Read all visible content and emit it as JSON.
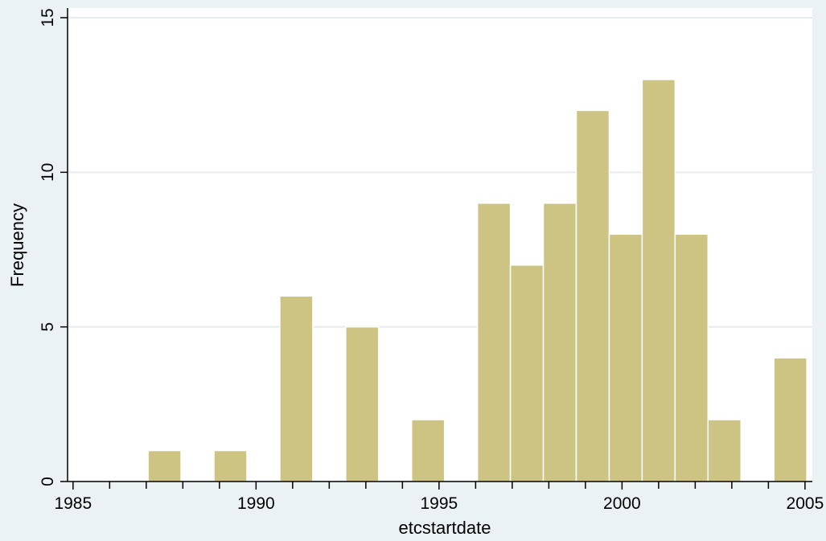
{
  "chart_data": {
    "type": "bar",
    "title": "",
    "xlabel": "etcstartdate",
    "ylabel": "Frequency",
    "xlim": [
      1984.85,
      2005.2
    ],
    "ylim": [
      0,
      15
    ],
    "x_ticks": [
      "1985",
      "1990",
      "1995",
      "2000",
      "2005"
    ],
    "y_ticks": [
      "0",
      "5",
      "10",
      "15"
    ],
    "grid": true,
    "colors": {
      "background": "#eaf2f3",
      "plot_background": "#ffffff",
      "bar_fill": "#cdc383",
      "bar_edge": "#ffffff",
      "grid": "#e3edee"
    },
    "bins": [
      {
        "start": 1987.05,
        "end": 1987.95,
        "value": 1
      },
      {
        "start": 1988.85,
        "end": 1989.75,
        "value": 1
      },
      {
        "start": 1990.65,
        "end": 1991.55,
        "value": 6
      },
      {
        "start": 1992.45,
        "end": 1993.35,
        "value": 5
      },
      {
        "start": 1994.25,
        "end": 1995.15,
        "value": 2
      },
      {
        "start": 1996.05,
        "end": 1996.95,
        "value": 9
      },
      {
        "start": 1996.95,
        "end": 1997.85,
        "value": 7
      },
      {
        "start": 1997.85,
        "end": 1998.75,
        "value": 9
      },
      {
        "start": 1998.75,
        "end": 1999.65,
        "value": 12
      },
      {
        "start": 1999.65,
        "end": 2000.55,
        "value": 8
      },
      {
        "start": 2000.55,
        "end": 2001.45,
        "value": 13
      },
      {
        "start": 2001.45,
        "end": 2002.35,
        "value": 8
      },
      {
        "start": 2002.35,
        "end": 2003.25,
        "value": 2
      },
      {
        "start": 2004.15,
        "end": 2005.05,
        "value": 4
      }
    ]
  }
}
